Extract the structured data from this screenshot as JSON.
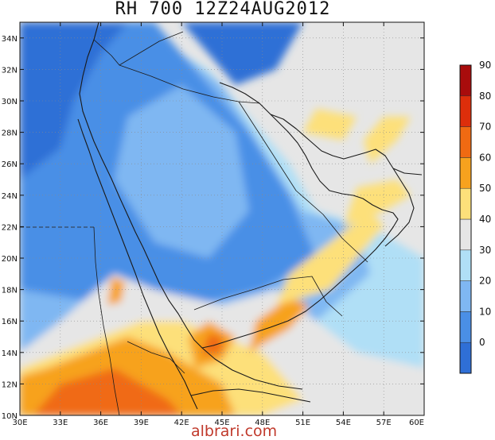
{
  "title": "RH 700 12Z24AUG2012",
  "credit": "albrari.com",
  "lat_ticks": [
    "10N",
    "12N",
    "14N",
    "16N",
    "18N",
    "20N",
    "22N",
    "24N",
    "26N",
    "28N",
    "30N",
    "32N",
    "34N"
  ],
  "lon_ticks": [
    "30E",
    "33E",
    "36E",
    "39E",
    "42E",
    "45E",
    "48E",
    "51E",
    "54E",
    "57E",
    "60E"
  ],
  "colorbar": {
    "labels": [
      "0",
      "10",
      "20",
      "30",
      "40",
      "50",
      "60",
      "70",
      "80",
      "90"
    ],
    "colors": [
      "#2f6fd6",
      "#4a8fe6",
      "#7fb7f2",
      "#b0dff6",
      "#e6e6e6",
      "#fde07a",
      "#f7a21e",
      "#f06a12",
      "#dd2e0b",
      "#a80c0c"
    ]
  },
  "field": {
    "lon_range": [
      30,
      60
    ],
    "lat_range": [
      10,
      35
    ],
    "background_level": 4,
    "regions": [
      {
        "level": 3,
        "points": [
          [
            30,
            10
          ],
          [
            60,
            10
          ],
          [
            60,
            20
          ],
          [
            56,
            22
          ],
          [
            52,
            23
          ],
          [
            50,
            26
          ],
          [
            47,
            29
          ],
          [
            44,
            32
          ],
          [
            38,
            35
          ],
          [
            30,
            35
          ]
        ]
      },
      {
        "level": 2,
        "points": [
          [
            30,
            11
          ],
          [
            43,
            11
          ],
          [
            46,
            13
          ],
          [
            52,
            16
          ],
          [
            56,
            19
          ],
          [
            55,
            22
          ],
          [
            51,
            23
          ],
          [
            48,
            27
          ],
          [
            45,
            31
          ],
          [
            39,
            35
          ],
          [
            30,
            35
          ]
        ]
      },
      {
        "level": 1,
        "points": [
          [
            30,
            18
          ],
          [
            37,
            17
          ],
          [
            40,
            16
          ],
          [
            43,
            17
          ],
          [
            48,
            18
          ],
          [
            52,
            20
          ],
          [
            50,
            24
          ],
          [
            47,
            28
          ],
          [
            44,
            31
          ],
          [
            40,
            35
          ],
          [
            30,
            35
          ]
        ]
      },
      {
        "level": 0,
        "points": [
          [
            30,
            25
          ],
          [
            33,
            27
          ],
          [
            34,
            30
          ],
          [
            36,
            33
          ],
          [
            38,
            35
          ],
          [
            30,
            35
          ]
        ]
      },
      {
        "level": 0,
        "points": [
          [
            42,
            35
          ],
          [
            46,
            31
          ],
          [
            49,
            32
          ],
          [
            51,
            35
          ]
        ]
      },
      {
        "level": 2,
        "points": [
          [
            38,
            29
          ],
          [
            42,
            31
          ],
          [
            46,
            28
          ],
          [
            47,
            23
          ],
          [
            44,
            20
          ],
          [
            40,
            21
          ],
          [
            37,
            25
          ]
        ]
      },
      {
        "level": 4,
        "points": [
          [
            30,
            10
          ],
          [
            60,
            10
          ],
          [
            60,
            13
          ],
          [
            55,
            14
          ],
          [
            52,
            16
          ],
          [
            49,
            18
          ],
          [
            45,
            17
          ],
          [
            40,
            18
          ],
          [
            37,
            19
          ],
          [
            33,
            16
          ],
          [
            30,
            14
          ]
        ]
      },
      {
        "level": 5,
        "points": [
          [
            30,
            10
          ],
          [
            48,
            10
          ],
          [
            51,
            11
          ],
          [
            48,
            14
          ],
          [
            45,
            15
          ],
          [
            42,
            16
          ],
          [
            39,
            16
          ],
          [
            36,
            15
          ],
          [
            33,
            14
          ],
          [
            30,
            13
          ]
        ]
      },
      {
        "level": 6,
        "points": [
          [
            30,
            10
          ],
          [
            46,
            10
          ],
          [
            45,
            12
          ],
          [
            43,
            13
          ],
          [
            41,
            14
          ],
          [
            38,
            15
          ],
          [
            35,
            14
          ],
          [
            32,
            13
          ],
          [
            30,
            12.5
          ]
        ]
      },
      {
        "level": 7,
        "points": [
          [
            31,
            10
          ],
          [
            42,
            10
          ],
          [
            41,
            11
          ],
          [
            39,
            12
          ],
          [
            37,
            13
          ],
          [
            35,
            12.5
          ],
          [
            33,
            12
          ]
        ]
      },
      {
        "level": 6,
        "points": [
          [
            43,
            13
          ],
          [
            45,
            13.5
          ],
          [
            46,
            15
          ],
          [
            44,
            16
          ],
          [
            42.5,
            15
          ]
        ]
      },
      {
        "level": 7,
        "points": [
          [
            43.5,
            13.8
          ],
          [
            45,
            14
          ],
          [
            45,
            15
          ],
          [
            44,
            15.2
          ]
        ]
      },
      {
        "level": 6,
        "points": [
          [
            47,
            14
          ],
          [
            50,
            15.5
          ],
          [
            51.5,
            17
          ],
          [
            50,
            17.5
          ],
          [
            47.5,
            16
          ]
        ]
      },
      {
        "level": 5,
        "points": [
          [
            49,
            17
          ],
          [
            53,
            18
          ],
          [
            55,
            20
          ],
          [
            57,
            22
          ],
          [
            56,
            23
          ],
          [
            53,
            21
          ],
          [
            50,
            19
          ]
        ]
      },
      {
        "level": 5,
        "points": [
          [
            54,
            22
          ],
          [
            57,
            23
          ],
          [
            59,
            24
          ],
          [
            58,
            25
          ],
          [
            55,
            24.5
          ]
        ]
      },
      {
        "level": 5,
        "points": [
          [
            56,
            26
          ],
          [
            58,
            27.5
          ],
          [
            59,
            29
          ],
          [
            57,
            29
          ],
          [
            55.5,
            27.5
          ]
        ]
      },
      {
        "level": 6,
        "points": [
          [
            36.5,
            17
          ],
          [
            37.5,
            17.2
          ],
          [
            37.8,
            18.5
          ],
          [
            36.8,
            18.8
          ]
        ]
      },
      {
        "level": 5,
        "points": [
          [
            51,
            28
          ],
          [
            54,
            27.5
          ],
          [
            55,
            29
          ],
          [
            52,
            29.5
          ]
        ]
      }
    ]
  },
  "colors": {
    "coast": "#1a1a1a",
    "grid": "#8a8a8a",
    "credit": "#c0392b"
  }
}
